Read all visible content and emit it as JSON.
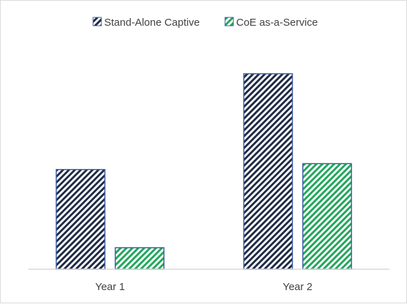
{
  "chart_data": {
    "type": "bar",
    "categories": [
      "Year 1",
      "Year 2"
    ],
    "series": [
      {
        "name": "Stand-Alone Captive",
        "values": [
          51,
          100
        ],
        "pattern": "hatch-dark",
        "stripe_color": "#1f2a44",
        "border_color": "#3b5ba5"
      },
      {
        "name": "CoE as-a-Service",
        "values": [
          11,
          54
        ],
        "pattern": "hatch-green",
        "stripe_color": "#21a65a",
        "border_color": "#3b5ba5"
      }
    ],
    "title": "",
    "xlabel": "",
    "ylabel": "",
    "ylim": [
      0,
      100
    ],
    "grid": false,
    "legend_position": "top"
  }
}
